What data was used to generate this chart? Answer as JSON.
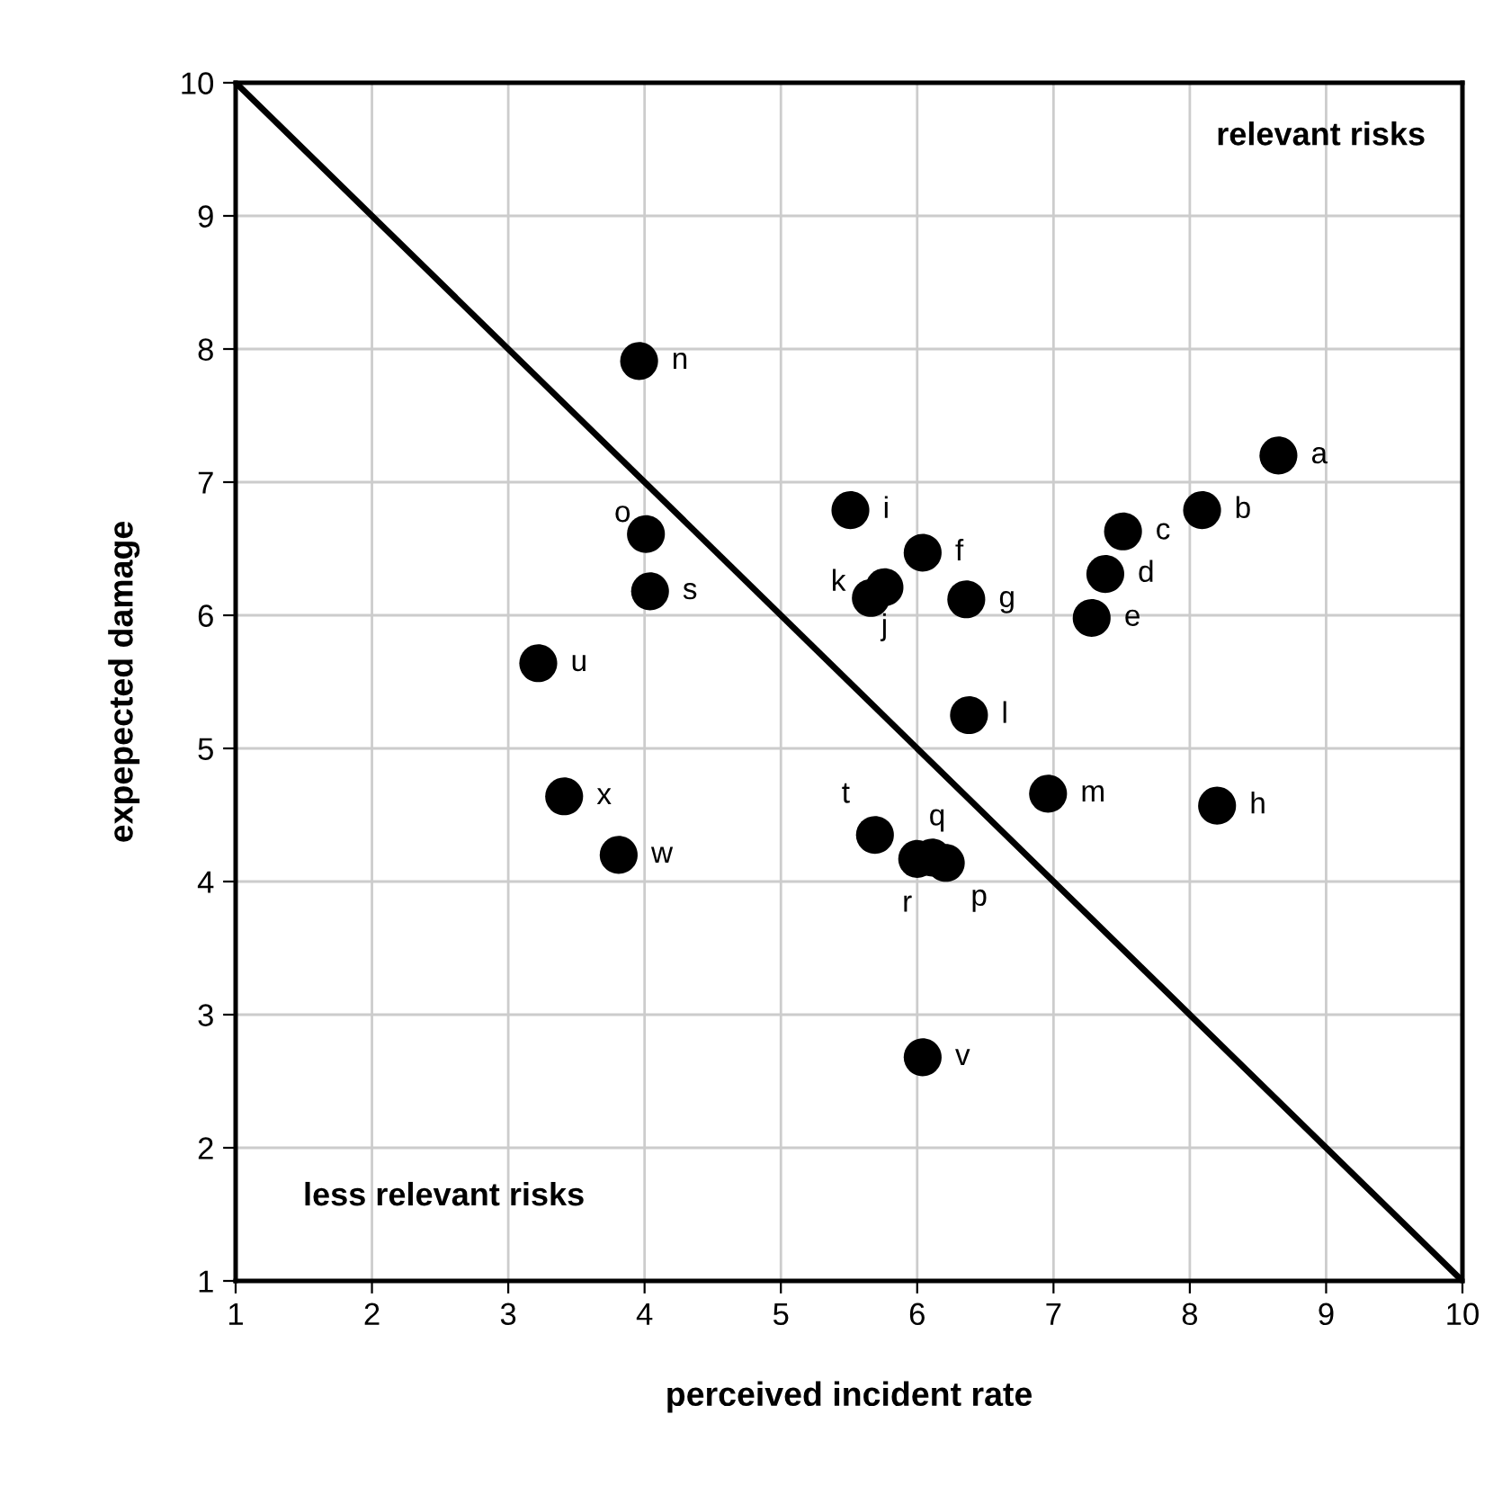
{
  "chart_data": {
    "type": "scatter",
    "xlabel": "perceived incident rate",
    "ylabel": "expepected damage",
    "xlim": [
      1,
      10
    ],
    "ylim": [
      1,
      10
    ],
    "xticks": [
      1,
      2,
      3,
      4,
      5,
      6,
      7,
      8,
      9,
      10
    ],
    "yticks": [
      1,
      2,
      3,
      4,
      5,
      6,
      7,
      8,
      9,
      10
    ],
    "grid": true,
    "legend": false,
    "marker": "circle",
    "series": [
      {
        "color": "#000000",
        "x": [
          8.65,
          8.09,
          7.51,
          7.38,
          7.28,
          6.04,
          6.36,
          8.2,
          5.51,
          5.76,
          5.66,
          6.38,
          6.96,
          3.96,
          4.01,
          6.21,
          6.11,
          6.0,
          4.04,
          5.69,
          3.22,
          6.04,
          3.81,
          3.41
        ],
        "values": [
          7.2,
          6.79,
          6.63,
          6.31,
          5.98,
          6.47,
          6.12,
          4.57,
          6.79,
          6.21,
          6.13,
          5.25,
          4.66,
          7.91,
          6.61,
          4.14,
          4.18,
          4.17,
          6.18,
          4.35,
          5.64,
          2.68,
          4.2,
          4.64
        ],
        "value_labels": [
          "a",
          "b",
          "c",
          "d",
          "e",
          "f",
          "g",
          "h",
          "i",
          "j",
          "k",
          "l",
          "m",
          "n",
          "o",
          "p",
          "q",
          "r",
          "s",
          "t",
          "u",
          "v",
          "w",
          "x"
        ]
      },
      {
        "type": "line",
        "color": "#000000",
        "x": [
          1,
          10
        ],
        "values": [
          10,
          1
        ],
        "marker": "none",
        "line_style": "solid"
      }
    ],
    "annotations": [
      "relevant risks",
      "less relevant risks"
    ]
  }
}
